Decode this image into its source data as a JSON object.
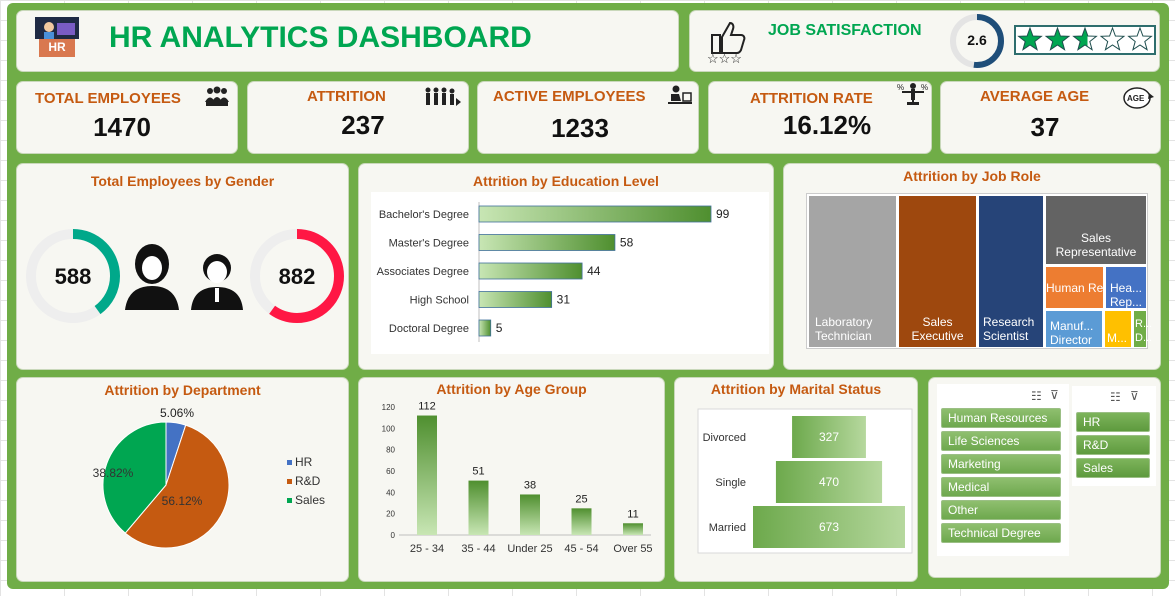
{
  "header": {
    "title": "HR ANALYTICS DASHBOARD",
    "logo_text": "HR"
  },
  "job_satisfaction": {
    "label": "JOB SATISFACTION",
    "score": "2.6",
    "score_value": 2.6,
    "max_stars": 5
  },
  "kpis": [
    {
      "title": "TOTAL EMPLOYEES",
      "value": "1470",
      "icon": "people-group-icon"
    },
    {
      "title": "ATTRITION",
      "value": "237",
      "icon": "people-leaving-icon"
    },
    {
      "title": "ACTIVE EMPLOYEES",
      "value": "1233",
      "icon": "person-at-desk-icon"
    },
    {
      "title": "ATTRITION RATE",
      "value": "16.12%",
      "icon": "percent-balance-icon"
    },
    {
      "title": "AVERAGE AGE",
      "value": "37",
      "icon": "age-badge-icon"
    }
  ],
  "gender": {
    "title": "Total Employees by Gender",
    "female": "588",
    "male": "882",
    "female_share": 0.4,
    "male_share": 0.6
  },
  "education": {
    "title": "Attrition by Education Level",
    "chart_data": {
      "type": "bar",
      "categories": [
        "Bachelor's Degree",
        "Master's Degree",
        "Associates Degree",
        "High School",
        "Doctoral Degree"
      ],
      "values": [
        99,
        58,
        44,
        31,
        5
      ]
    }
  },
  "job_role": {
    "title": "Attrition by Job Role",
    "chart_data": {
      "type": "treemap",
      "labels": [
        "Laboratory Technician",
        "Sales Executive",
        "Research Scientist",
        "Sales Representative",
        "Human Resour...",
        "Hea... Rep...",
        "Manuf... Director",
        "R... D...",
        "M..."
      ],
      "colors": [
        "#a5a5a5",
        "#9e480e",
        "#264478",
        "#636363",
        "#ed7d31",
        "#4472c4",
        "#5b9bd5",
        "#70ad47",
        "#ffc000"
      ]
    }
  },
  "department": {
    "title": "Attrition by Department",
    "chart_data": {
      "type": "pie",
      "labels": [
        "HR",
        "R&D",
        "Sales"
      ],
      "values": [
        5.06,
        56.12,
        38.82
      ],
      "value_labels": [
        "5.06%",
        "56.12%",
        "38.82%"
      ],
      "colors": [
        "#4472c4",
        "#c55a11",
        "#00a651"
      ]
    }
  },
  "age_group": {
    "title": "Attrition by Age Group",
    "chart_data": {
      "type": "bar",
      "categories": [
        "25 - 34",
        "35 - 44",
        "Under 25",
        "45 - 54",
        "Over 55"
      ],
      "values": [
        112,
        51,
        38,
        25,
        11
      ],
      "ylim": [
        0,
        120
      ],
      "yticks": [
        "0",
        "20",
        "40",
        "60",
        "80",
        "100",
        "120"
      ]
    }
  },
  "marital": {
    "title": "Attrition by Marital Status",
    "chart_data": {
      "type": "bar",
      "categories": [
        "Divorced",
        "Single",
        "Married"
      ],
      "values": [
        327,
        470,
        673
      ]
    }
  },
  "slicers": {
    "education_field": [
      "Human Resources",
      "Life Sciences",
      "Marketing",
      "Medical",
      "Other",
      "Technical Degree"
    ],
    "department": [
      "HR",
      "R&D",
      "Sales"
    ]
  }
}
